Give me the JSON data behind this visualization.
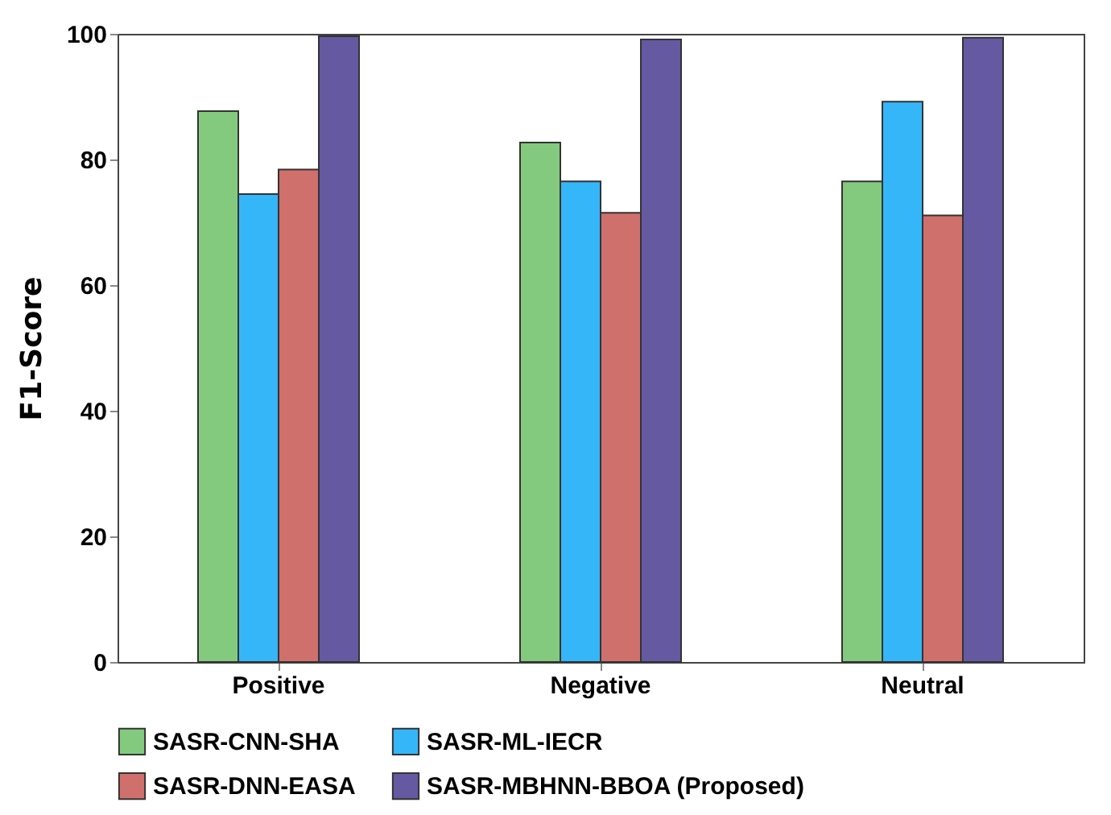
{
  "chart_data": {
    "type": "bar",
    "ylabel": "F1-Score",
    "categories": [
      "Positive",
      "Negative",
      "Neutral"
    ],
    "series": [
      {
        "name": "SASR-CNN-SHA",
        "color": "#84ca7e",
        "values": [
          87.7,
          82.7,
          76.5
        ]
      },
      {
        "name": "SASR-ML-IECR",
        "color": "#35b6f9",
        "values": [
          74.5,
          76.5,
          89.2
        ]
      },
      {
        "name": "SASR-DNN-EASA",
        "color": "#d0706c",
        "values": [
          78.4,
          71.5,
          71.1
        ]
      },
      {
        "name": "SASR-MBHNN-BBOA (Proposed)",
        "color": "#6559a2",
        "values": [
          99.6,
          99.1,
          99.4
        ]
      }
    ],
    "ylim": [
      0,
      100
    ],
    "yticks": [
      0,
      20,
      40,
      60,
      80,
      100
    ],
    "grid": false,
    "legend": "bottom"
  }
}
